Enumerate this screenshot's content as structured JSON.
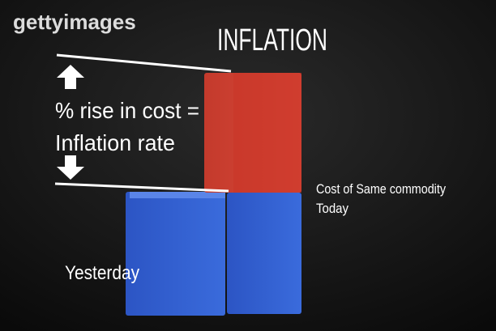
{
  "watermark": "gettyimages",
  "title": "INFLATION",
  "annotation": {
    "lines": [
      "% rise in cost =",
      "Inflation rate"
    ]
  },
  "labels": {
    "today": [
      "Cost of Same commodity",
      "Today"
    ],
    "yesterday": "Yesterday"
  }
}
